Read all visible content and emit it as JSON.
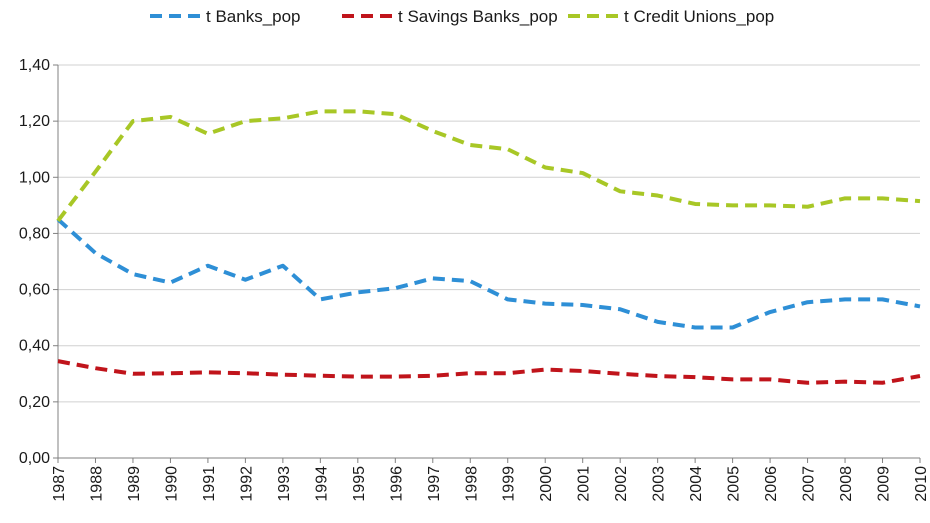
{
  "chart_data": {
    "type": "line",
    "title": "",
    "xlabel": "",
    "ylabel": "",
    "x": [
      "1987",
      "1988",
      "1989",
      "1990",
      "1991",
      "1992",
      "1993",
      "1994",
      "1995",
      "1996",
      "1997",
      "1998",
      "1999",
      "2000",
      "2001",
      "2002",
      "2003",
      "2004",
      "2005",
      "2006",
      "2007",
      "2008",
      "2009",
      "2010"
    ],
    "ylim": [
      0,
      1.4
    ],
    "yticks": [
      0,
      0.2,
      0.4,
      0.6,
      0.8,
      1.0,
      1.2,
      1.4
    ],
    "ytick_labels": [
      "0,00",
      "0,20",
      "0,40",
      "0,60",
      "0,80",
      "1,00",
      "1,20",
      "1,40"
    ],
    "grid": "horizontal",
    "legend_position": "top",
    "line_style": "dashed",
    "series": [
      {
        "name": "t Banks_pop",
        "color": "#2e8fd6",
        "values": [
          0.85,
          0.73,
          0.655,
          0.625,
          0.685,
          0.635,
          0.685,
          0.565,
          0.59,
          0.605,
          0.64,
          0.63,
          0.565,
          0.55,
          0.545,
          0.53,
          0.485,
          0.465,
          0.465,
          0.52,
          0.555,
          0.565,
          0.565,
          0.54
        ]
      },
      {
        "name": "t Savings Banks_pop",
        "color": "#c0141b",
        "values": [
          0.345,
          0.32,
          0.3,
          0.302,
          0.305,
          0.302,
          0.297,
          0.293,
          0.29,
          0.29,
          0.293,
          0.302,
          0.302,
          0.315,
          0.31,
          0.3,
          0.292,
          0.288,
          0.28,
          0.28,
          0.268,
          0.272,
          0.268,
          0.292
        ]
      },
      {
        "name": "t Credit Unions_pop",
        "color": "#a8c726",
        "values": [
          0.845,
          1.02,
          1.2,
          1.215,
          1.155,
          1.2,
          1.21,
          1.235,
          1.235,
          1.225,
          1.165,
          1.115,
          1.1,
          1.035,
          1.015,
          0.95,
          0.935,
          0.905,
          0.9,
          0.9,
          0.895,
          0.925,
          0.925,
          0.915
        ]
      }
    ]
  }
}
